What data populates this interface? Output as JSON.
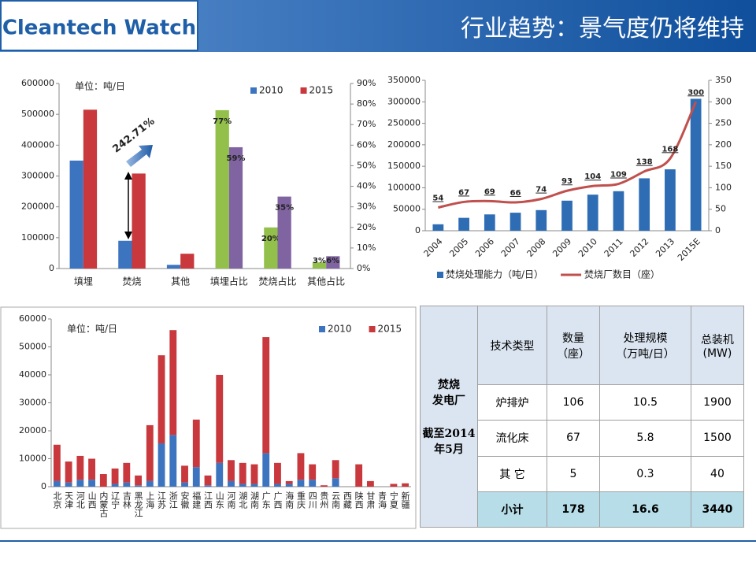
{
  "header": {
    "logo": "Cleantech Watch",
    "title": "行业趋势：景气度仍将维持"
  },
  "chart_data": [
    {
      "type": "bar",
      "unit_label": "单位：吨/日",
      "annotation": "242.71%",
      "legend": "upper right",
      "categories": [
        "填埋",
        "焚烧",
        "其他",
        "填埋占比",
        "焚烧占比",
        "其他占比"
      ],
      "series": [
        {
          "name": "2010",
          "color": "#3d74c0",
          "values": [
            350000,
            90000,
            12000,
            null,
            null,
            null
          ]
        },
        {
          "name": "2015",
          "color": "#c8383c",
          "values": [
            515000,
            308000,
            48000,
            null,
            null,
            null
          ]
        },
        {
          "color": "#92c04a",
          "axis": "y2",
          "values": [
            null,
            null,
            null,
            77,
            20,
            3
          ],
          "value_labels": [
            null,
            null,
            null,
            "77%",
            "20%",
            "3%"
          ]
        },
        {
          "color": "#8064a2",
          "axis": "y2",
          "values": [
            null,
            null,
            null,
            59,
            35,
            6
          ],
          "value_labels": [
            null,
            null,
            null,
            "59%",
            "35%",
            "6%"
          ]
        }
      ],
      "ylim": [
        0,
        600000
      ],
      "yticks": [
        0,
        100000,
        200000,
        300000,
        400000,
        500000,
        600000
      ],
      "y2lim": [
        0,
        90
      ],
      "y2ticks": [
        {
          "value": 0,
          "label": "0%"
        },
        {
          "value": 10,
          "label": "10%"
        },
        {
          "value": 20,
          "label": "20%"
        },
        {
          "value": 30,
          "label": "30%"
        },
        {
          "value": 40,
          "label": "40%"
        },
        {
          "value": 50,
          "label": "50%"
        },
        {
          "value": 60,
          "label": "60%"
        },
        {
          "value": 70,
          "label": "70%"
        },
        {
          "value": 80,
          "label": "80%"
        },
        {
          "value": 90,
          "label": "90%"
        }
      ]
    },
    {
      "type": "bar",
      "legend": "bottom",
      "categories": [
        "2004",
        "2005",
        "2006",
        "2007",
        "2008",
        "2009",
        "2010",
        "2011",
        "2012",
        "2013",
        "2015E"
      ],
      "series": [
        {
          "name": "焚烧处理能力（吨/日）",
          "color": "#2e6db4",
          "values": [
            15000,
            30000,
            38000,
            42000,
            48000,
            70000,
            84000,
            92000,
            122000,
            143000,
            307000
          ]
        },
        {
          "name": "焚烧厂数目（座）",
          "color": "#c0504d",
          "type": "line",
          "axis": "y2",
          "values": [
            54,
            67,
            69,
            66,
            74,
            93,
            104,
            109,
            138,
            168,
            300
          ]
        }
      ],
      "ylim": [
        0,
        350000
      ],
      "yticks": [
        0,
        50000,
        100000,
        150000,
        200000,
        250000,
        300000,
        350000
      ],
      "y2lim": [
        0,
        350
      ],
      "y2ticks": [
        0,
        50,
        100,
        150,
        200,
        250,
        300,
        350
      ]
    },
    {
      "type": "stacked_bar",
      "unit_label": "单位：吨/日",
      "legend": "upper right",
      "categories": [
        "北京",
        "天津",
        "河北",
        "山西",
        "内蒙古",
        "辽宁",
        "吉林",
        "黑龙江",
        "上海",
        "江苏",
        "浙江",
        "安徽",
        "福建",
        "江西",
        "山东",
        "河南",
        "湖北",
        "湖南",
        "广东",
        "广西",
        "海南",
        "重庆",
        "四川",
        "贵州",
        "云南",
        "西藏",
        "陕西",
        "甘肃",
        "青海",
        "宁夏",
        "新疆"
      ],
      "series": [
        {
          "name": "2010",
          "color": "#3d74c0",
          "values": [
            2000,
            1500,
            2500,
            2500,
            0,
            1000,
            1500,
            500,
            2000,
            15500,
            18500,
            1500,
            7000,
            500,
            8500,
            2000,
            1000,
            1000,
            12000,
            1000,
            1000,
            2500,
            2500,
            0,
            3000,
            0,
            0,
            0,
            0,
            0,
            0
          ]
        },
        {
          "name": "2015",
          "color": "#c8383c",
          "values": [
            13000,
            7500,
            8500,
            7500,
            4500,
            5500,
            7000,
            3500,
            20000,
            31500,
            37500,
            6000,
            17000,
            3500,
            31500,
            7500,
            7500,
            7000,
            41500,
            7500,
            1000,
            9500,
            5500,
            500,
            6500,
            0,
            8000,
            2000,
            0,
            1000,
            1200
          ]
        }
      ],
      "ylim": [
        0,
        60000
      ],
      "yticks": [
        0,
        10000,
        20000,
        30000,
        40000,
        50000,
        60000
      ]
    }
  ],
  "table": {
    "side": [
      "焚烧\n发电厂",
      "截至2014\n年5月"
    ],
    "header": [
      "技术类型",
      "数量\n（座）",
      "处理规模\n（万吨/日）",
      "总装机\n(MW)"
    ],
    "rows": [
      [
        "炉排炉",
        "106",
        "10.5",
        "1900"
      ],
      [
        "流化床",
        "67",
        "5.8",
        "1500"
      ],
      [
        "其 它",
        "5",
        "0.3",
        "40"
      ],
      [
        "小计",
        "178",
        "16.6",
        "3440"
      ]
    ]
  }
}
